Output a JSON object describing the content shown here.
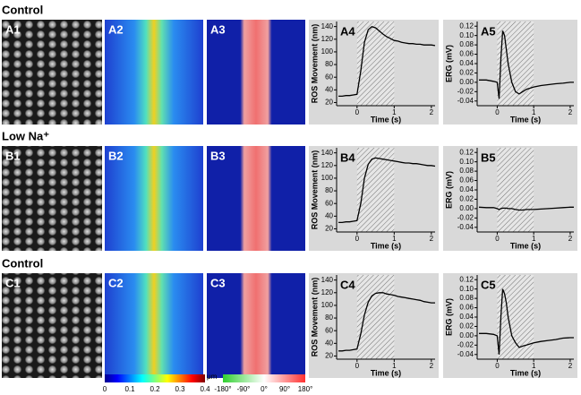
{
  "rows": [
    {
      "title": "Control",
      "panels": [
        "A1",
        "A2",
        "A3"
      ]
    },
    {
      "title": "Low Na⁺",
      "panels": [
        "B1",
        "B2",
        "B3"
      ]
    },
    {
      "title": "Control",
      "panels": [
        "C1",
        "C2",
        "C3"
      ]
    }
  ],
  "colorbars": [
    {
      "unit": "μm",
      "lim": [
        0,
        0.4
      ],
      "ticks": [
        0,
        0.1,
        0.2,
        0.3,
        0.4
      ]
    },
    {
      "lim": [
        -180,
        180
      ],
      "ticks": [
        {
          "value": -180,
          "label": "-180°"
        },
        {
          "value": -90,
          "label": "-90°"
        },
        {
          "value": 0,
          "label": "0°"
        },
        {
          "value": 90,
          "label": "90°"
        },
        {
          "value": 180,
          "label": "180°"
        }
      ]
    }
  ],
  "chart_data": [
    {
      "type": "line",
      "label": "A4",
      "x_label": "Time (s)",
      "y_label": "ROS Movement (nm)",
      "x": [
        -0.5,
        -0.4,
        -0.3,
        -0.2,
        -0.1,
        0,
        0.1,
        0.2,
        0.3,
        0.4,
        0.5,
        0.6,
        0.7,
        0.8,
        0.9,
        1,
        1.1,
        1.2,
        1.3,
        1.4,
        1.5,
        1.6,
        1.7,
        1.8,
        1.9,
        2,
        2.1
      ],
      "series": [
        {
          "color": "#000000",
          "values": [
            30,
            30,
            31,
            31,
            32,
            33,
            70,
            115,
            135,
            140,
            138,
            133,
            128,
            124,
            121,
            118,
            117,
            115,
            114,
            113,
            113,
            112,
            112,
            111,
            111,
            111,
            110
          ]
        }
      ],
      "shade": [
        0,
        1
      ],
      "xlim": [
        -0.55,
        2.1
      ],
      "ylim": [
        15,
        148
      ],
      "xticks": [
        0,
        1,
        2
      ],
      "yticks": [
        20,
        40,
        60,
        80,
        100,
        120,
        140
      ]
    },
    {
      "type": "line",
      "label": "A5",
      "x_label": "Time (s)",
      "y_label": "ERG (mV)",
      "x": [
        -0.5,
        -0.3,
        -0.1,
        0,
        0.05,
        0.1,
        0.15,
        0.2,
        0.25,
        0.3,
        0.4,
        0.5,
        0.6,
        0.7,
        0.8,
        1,
        1.2,
        1.4,
        1.6,
        1.8,
        2,
        2.1
      ],
      "series": [
        {
          "color": "#000000",
          "values": [
            0.005,
            0.005,
            0.002,
            0,
            -0.035,
            0.05,
            0.11,
            0.1,
            0.07,
            0.04,
            0,
            -0.02,
            -0.025,
            -0.02,
            -0.015,
            -0.01,
            -0.007,
            -0.005,
            -0.003,
            -0.002,
            0,
            0
          ]
        }
      ],
      "shade": [
        0,
        1
      ],
      "xlim": [
        -0.55,
        2.1
      ],
      "ylim": [
        -0.05,
        0.13
      ],
      "xticks": [
        0,
        1,
        2
      ],
      "yticks": [
        -0.04,
        -0.02,
        {
          "value": 0,
          "label": "0.00"
        },
        0.02,
        0.04,
        0.06,
        0.08,
        {
          "value": 0.1,
          "label": "0.10"
        },
        0.12
      ]
    },
    {
      "type": "line",
      "label": "B4",
      "x_label": "Time (s)",
      "y_label": "ROS Movement (nm)",
      "x": [
        -0.5,
        -0.4,
        -0.3,
        -0.2,
        -0.1,
        0,
        0.1,
        0.2,
        0.3,
        0.4,
        0.5,
        0.6,
        0.7,
        0.8,
        0.9,
        1,
        1.1,
        1.2,
        1.3,
        1.4,
        1.5,
        1.6,
        1.7,
        1.8,
        1.9,
        2,
        2.1
      ],
      "series": [
        {
          "color": "#000000",
          "values": [
            30,
            30,
            31,
            31,
            32,
            33,
            60,
            100,
            122,
            130,
            132,
            131,
            130,
            129,
            128,
            127,
            126,
            125,
            124,
            124,
            123,
            123,
            122,
            121,
            120,
            120,
            119
          ]
        }
      ],
      "shade": [
        0,
        1
      ],
      "xlim": [
        -0.55,
        2.1
      ],
      "ylim": [
        15,
        148
      ],
      "xticks": [
        0,
        1,
        2
      ],
      "yticks": [
        20,
        40,
        60,
        80,
        100,
        120,
        140
      ]
    },
    {
      "type": "line",
      "label": "B5",
      "x_label": "Time (s)",
      "y_label": "ERG (mV)",
      "x": [
        -0.5,
        -0.3,
        -0.1,
        0,
        0.05,
        0.1,
        0.15,
        0.2,
        0.25,
        0.3,
        0.4,
        0.5,
        0.6,
        0.7,
        0.8,
        1,
        1.2,
        1.4,
        1.6,
        1.8,
        2,
        2.1
      ],
      "series": [
        {
          "color": "#000000",
          "values": [
            0.003,
            0.002,
            0.002,
            0,
            -0.002,
            0,
            0.001,
            0.001,
            0.001,
            0,
            0,
            -0.002,
            -0.003,
            -0.003,
            -0.002,
            -0.002,
            -0.001,
            0,
            0.001,
            0.002,
            0.003,
            0.003
          ]
        }
      ],
      "shade": [
        0,
        1
      ],
      "xlim": [
        -0.55,
        2.1
      ],
      "ylim": [
        -0.05,
        0.13
      ],
      "xticks": [
        0,
        1,
        2
      ],
      "yticks": [
        -0.04,
        -0.02,
        {
          "value": 0,
          "label": "0.00"
        },
        0.02,
        0.04,
        0.06,
        0.08,
        {
          "value": 0.1,
          "label": "0.10"
        },
        0.12
      ]
    },
    {
      "type": "line",
      "label": "C4",
      "x_label": "Time (s)",
      "y_label": "ROS Movement (nm)",
      "x": [
        -0.5,
        -0.4,
        -0.3,
        -0.2,
        -0.1,
        0,
        0.1,
        0.2,
        0.3,
        0.4,
        0.5,
        0.6,
        0.7,
        0.8,
        0.9,
        1,
        1.1,
        1.2,
        1.3,
        1.4,
        1.5,
        1.6,
        1.7,
        1.8,
        1.9,
        2,
        2.1
      ],
      "series": [
        {
          "color": "#000000",
          "values": [
            28,
            28,
            29,
            29,
            30,
            31,
            55,
            85,
            105,
            115,
            119,
            120,
            120,
            118,
            117,
            116,
            114,
            113,
            112,
            111,
            110,
            109,
            108,
            106,
            105,
            104,
            104
          ]
        }
      ],
      "shade": [
        0,
        1
      ],
      "xlim": [
        -0.55,
        2.1
      ],
      "ylim": [
        15,
        148
      ],
      "xticks": [
        0,
        1,
        2
      ],
      "yticks": [
        20,
        40,
        60,
        80,
        100,
        120,
        140
      ]
    },
    {
      "type": "line",
      "label": "C5",
      "x_label": "Time (s)",
      "y_label": "ERG (mV)",
      "x": [
        -0.5,
        -0.3,
        -0.1,
        0,
        0.05,
        0.1,
        0.15,
        0.2,
        0.25,
        0.3,
        0.4,
        0.5,
        0.6,
        0.7,
        0.8,
        1,
        1.2,
        1.4,
        1.6,
        1.8,
        2,
        2.1
      ],
      "series": [
        {
          "color": "#000000",
          "values": [
            0.005,
            0.005,
            0.003,
            0,
            -0.04,
            0.04,
            0.1,
            0.09,
            0.07,
            0.04,
            0,
            -0.015,
            -0.025,
            -0.022,
            -0.02,
            -0.015,
            -0.012,
            -0.01,
            -0.008,
            -0.005,
            -0.004,
            -0.004
          ]
        }
      ],
      "shade": [
        0,
        1
      ],
      "xlim": [
        -0.55,
        2.1
      ],
      "ylim": [
        -0.05,
        0.13
      ],
      "xticks": [
        0,
        1,
        2
      ],
      "yticks": [
        -0.04,
        -0.02,
        {
          "value": 0,
          "label": "0.00"
        },
        0.02,
        0.04,
        0.06,
        0.08,
        {
          "value": 0.1,
          "label": "0.10"
        },
        0.12
      ]
    }
  ]
}
